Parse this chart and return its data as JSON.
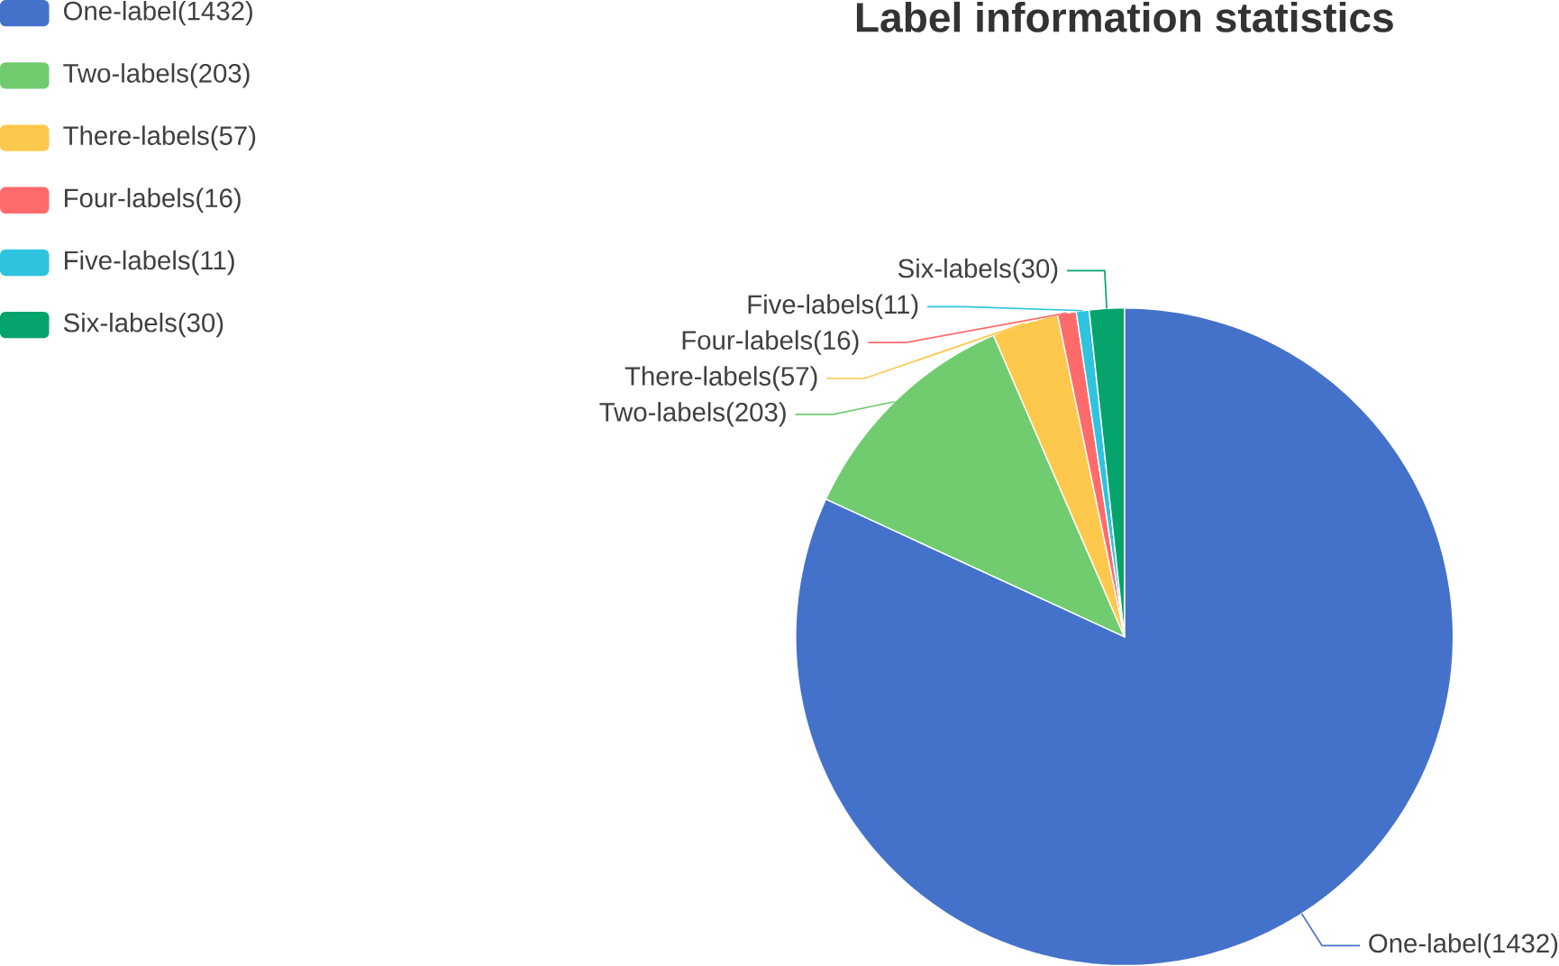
{
  "chart_data": {
    "type": "pie",
    "title": "Label information statistics",
    "categories": [
      "One-label(1432)",
      "Two-labels(203)",
      "There-labels(57)",
      "Four-labels(16)",
      "Five-labels(11)",
      "Six-labels(30)"
    ],
    "values": [
      1432,
      203,
      57,
      16,
      11,
      30
    ],
    "colors": [
      "#4472ca",
      "#70cc6e",
      "#fec84d",
      "#ff6b6b",
      "#2ec4df",
      "#04a46c"
    ],
    "legend": "top left"
  }
}
